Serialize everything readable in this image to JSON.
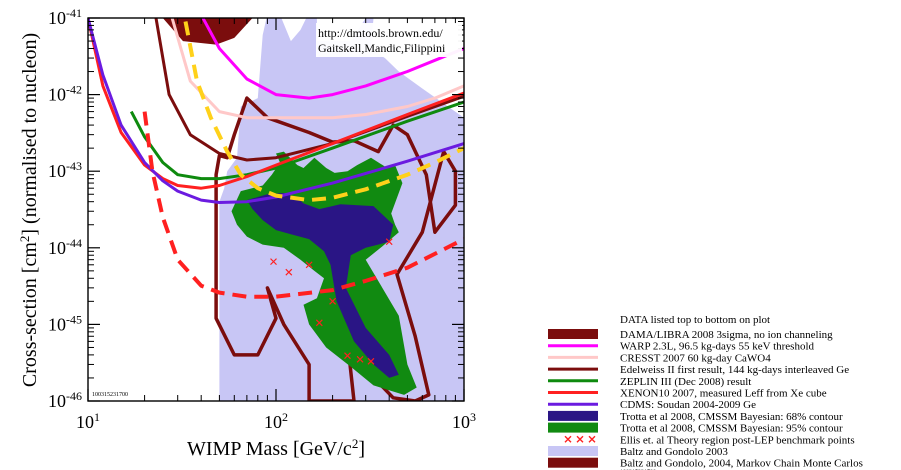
{
  "chart_data": {
    "type": "line",
    "xlabel_parts": [
      "WIMP Mass [GeV/c",
      "2",
      "]"
    ],
    "ylabel_parts": [
      "Cross-section [cm",
      "2",
      "] (normalised to nucleon)"
    ],
    "x_scale": "log",
    "y_scale": "log",
    "xlim": [
      10,
      1000
    ],
    "ylim": [
      1e-46,
      1e-41
    ],
    "x_ticks": [
      {
        "value": 10,
        "mantissa": "10",
        "exp": "1"
      },
      {
        "value": 100,
        "mantissa": "10",
        "exp": "2"
      },
      {
        "value": 1000,
        "mantissa": "10",
        "exp": "3"
      }
    ],
    "y_ticks": [
      {
        "value": 1e-46,
        "mantissa": "10",
        "exp": "-46"
      },
      {
        "value": 1e-45,
        "mantissa": "10",
        "exp": "-45"
      },
      {
        "value": 1e-44,
        "mantissa": "10",
        "exp": "-44"
      },
      {
        "value": 1e-43,
        "mantissa": "10",
        "exp": "-43"
      },
      {
        "value": 1e-42,
        "mantissa": "10",
        "exp": "-42"
      },
      {
        "value": 1e-41,
        "mantissa": "10",
        "exp": "-41"
      }
    ],
    "grid": false,
    "annotations": [
      "http://dmtools.brown.edu/",
      "Gaitskell,Mandic,Filippini"
    ],
    "plot_id": "100315231700",
    "legend_header": "DATA listed top to bottom on plot",
    "legend_footer": "100315231700",
    "legend_placement": "right-bottom",
    "series": [
      {
        "name": "DAMA/LIBRA 2008 3sigma, no ion channeling",
        "kind": "region",
        "color": "#7b0d0d",
        "polygon": [
          [
            25,
            1e-41
          ],
          [
            32,
            5e-42
          ],
          [
            48,
            4.5e-42
          ],
          [
            60,
            5.5e-42
          ],
          [
            75,
            1e-41
          ]
        ]
      },
      {
        "name": "WARP 2.3L, 96.5 kg-days 55 keV threshold",
        "kind": "line",
        "color": "#ff00ff",
        "dash": "solid",
        "x": [
          40,
          50,
          70,
          100,
          150,
          200,
          300,
          500,
          700,
          1000
        ],
        "y": [
          1.1e-41,
          4e-42,
          1.6e-42,
          1e-42,
          9e-43,
          1e-42,
          1.3e-42,
          2e-42,
          2.8e-42,
          4e-42
        ]
      },
      {
        "name": "CRESST 2007 60 kg-day CaWO4",
        "kind": "line",
        "color": "#ffc8c8",
        "dash": "solid",
        "x": [
          28,
          35,
          50,
          70,
          100,
          200,
          300,
          500,
          700,
          1000
        ],
        "y": [
          1e-41,
          1.5e-42,
          6e-43,
          5e-43,
          5e-43,
          5e-43,
          5.5e-43,
          7e-43,
          9e-43,
          1.3e-42
        ]
      },
      {
        "name": "Edelweiss II first result, 144 kg-days interleaved Ge",
        "kind": "line",
        "color": "#7b0d0d",
        "dash": "solid",
        "x": [
          23,
          27,
          35,
          50,
          70,
          100,
          200,
          500,
          1000
        ],
        "y": [
          1e-41,
          1e-42,
          3e-43,
          1.7e-43,
          1.4e-43,
          1.5e-43,
          2.3e-43,
          5.2e-43,
          9.5e-43
        ]
      },
      {
        "name": "ZEPLIN III (Dec 2008) result",
        "kind": "line",
        "color": "#0e8a0e",
        "dash": "solid",
        "x": [
          17,
          20,
          25,
          30,
          40,
          50,
          70,
          100,
          200,
          500,
          1000
        ],
        "y": [
          6e-43,
          2.8e-43,
          1.3e-43,
          9e-44,
          8e-44,
          8e-44,
          9e-44,
          1.1e-43,
          2e-43,
          4.5e-43,
          8e-43
        ]
      },
      {
        "name": "XENON10 2007, measured Leff from Xe cube",
        "kind": "line",
        "color": "#ff2020",
        "dash": "solid",
        "x": [
          10,
          12,
          15,
          20,
          25,
          30,
          40,
          50,
          70,
          100,
          200,
          500,
          1000
        ],
        "y": [
          1e-41,
          1.3e-42,
          3.2e-43,
          1.2e-43,
          8e-44,
          6.5e-44,
          6e-44,
          6.5e-44,
          8.5e-44,
          1.2e-43,
          2.3e-43,
          5.5e-43,
          1.05e-42
        ]
      },
      {
        "name": "CDMS: Soudan 2004-2009 Ge",
        "kind": "line",
        "color": "#6b1be0",
        "dash": "solid",
        "x": [
          10,
          12,
          15,
          20,
          25,
          30,
          40,
          50,
          70,
          100,
          200,
          500,
          1000
        ],
        "y": [
          1e-41,
          1.8e-42,
          4e-43,
          1.3e-43,
          7.5e-44,
          5.5e-44,
          4.2e-44,
          3.9e-44,
          4e-44,
          4.6e-44,
          7e-44,
          1.35e-43,
          2.3e-43
        ]
      },
      {
        "name": "Trotta et al 2008, CMSSM Bayesian: 68% contour",
        "kind": "region",
        "color": "#2a1585",
        "polygon": [
          [
            70,
            4.2e-44
          ],
          [
            90,
            5e-44
          ],
          [
            110,
            5.2e-44
          ],
          [
            130,
            4.5e-44
          ],
          [
            140,
            3.8e-44
          ],
          [
            170,
            3.2e-44
          ],
          [
            220,
            3.7e-44
          ],
          [
            330,
            3.5e-44
          ],
          [
            420,
            2e-44
          ],
          [
            400,
            1.2e-44
          ],
          [
            300,
            1e-44
          ],
          [
            250,
            8e-45
          ],
          [
            235,
            3e-45
          ],
          [
            300,
            9e-46
          ],
          [
            400,
            4e-46
          ],
          [
            450,
            2.2e-46
          ],
          [
            400,
            2e-46
          ],
          [
            330,
            3e-46
          ],
          [
            260,
            6e-46
          ],
          [
            210,
            2e-45
          ],
          [
            195,
            6e-45
          ],
          [
            180,
            9e-45
          ],
          [
            150,
            1.3e-44
          ],
          [
            120,
            1.5e-44
          ],
          [
            100,
            1.7e-44
          ],
          [
            85,
            2.3e-44
          ],
          [
            75,
            3.2e-44
          ]
        ]
      },
      {
        "name": "Trotta et al 2008, CMSSM Bayesian: 95% contour",
        "kind": "region",
        "color": "#118a11",
        "polygon": [
          [
            65,
            5.5e-44
          ],
          [
            85,
            6.5e-44
          ],
          [
            95,
            9e-44
          ],
          [
            105,
            1.3e-43
          ],
          [
            100,
            1.7e-43
          ],
          [
            110,
            1.8e-43
          ],
          [
            130,
            1.2e-43
          ],
          [
            140,
            1.1e-43
          ],
          [
            160,
            1.5e-43
          ],
          [
            185,
            1.1e-43
          ],
          [
            205,
            9.5e-44
          ],
          [
            240,
            1e-43
          ],
          [
            270,
            1.2e-43
          ],
          [
            320,
            1.5e-43
          ],
          [
            380,
            1.15e-43
          ],
          [
            430,
            1.2e-43
          ],
          [
            470,
            7e-44
          ],
          [
            410,
            2.8e-44
          ],
          [
            430,
            2e-44
          ],
          [
            450,
            1.6e-44
          ],
          [
            360,
            1e-44
          ],
          [
            300,
            7e-45
          ],
          [
            450,
            1.3e-45
          ],
          [
            500,
            3e-46
          ],
          [
            560,
            1.5e-46
          ],
          [
            480,
            1.2e-46
          ],
          [
            330,
            1.6e-46
          ],
          [
            250,
            2.8e-46
          ],
          [
            185,
            5e-46
          ],
          [
            150,
            1e-45
          ],
          [
            140,
            1.8e-45
          ],
          [
            165,
            2.2e-45
          ],
          [
            180,
            4e-45
          ],
          [
            160,
            5e-45
          ],
          [
            135,
            7e-45
          ],
          [
            110,
            1e-44
          ],
          [
            85,
            1.1e-44
          ],
          [
            70,
            1.4e-44
          ],
          [
            62,
            2e-44
          ],
          [
            58,
            3e-44
          ]
        ]
      },
      {
        "name": "Ellis et. al Theory region post-LEP benchmark points",
        "kind": "points",
        "color": "#ff2020",
        "x": [
          97,
          117,
          150,
          170,
          200,
          240,
          280,
          320,
          400
        ],
        "y": [
          6.6e-45,
          4.8e-45,
          6e-45,
          1.05e-45,
          2e-45,
          3.9e-46,
          3.5e-46,
          3.3e-46,
          1.2e-44
        ]
      },
      {
        "name": "Baltz and Gondolo 2003",
        "kind": "region",
        "color": "#c8c6f5",
        "polygon": [
          [
            50,
            1e-46
          ],
          [
            50,
            4e-44
          ],
          [
            53,
            6e-44
          ],
          [
            55,
            1e-43
          ],
          [
            62,
            1.5e-43
          ],
          [
            65,
            7e-43
          ],
          [
            80,
            9e-43
          ],
          [
            85,
            6e-42
          ],
          [
            95,
            2e-41
          ],
          [
            120,
            5e-42
          ],
          [
            135,
            7e-42
          ],
          [
            145,
            1e-41
          ],
          [
            165,
            1e-41
          ],
          [
            165,
            5e-42
          ],
          [
            250,
            5e-42
          ],
          [
            300,
            1e-41
          ],
          [
            330,
            1e-41
          ],
          [
            320,
            4e-42
          ],
          [
            380,
            3e-42
          ],
          [
            450,
            2e-42
          ],
          [
            600,
            1.2e-42
          ],
          [
            1000,
            5e-43
          ],
          [
            1000,
            1e-46
          ]
        ]
      },
      {
        "name": "Baltz and Gondolo, 2004, Markov Chain Monte Carlos",
        "kind": "region_outline",
        "color": "#7b0d0d",
        "polygon": [
          [
            48,
            9e-44
          ],
          [
            48,
            1.2e-45
          ],
          [
            60,
            4e-46
          ],
          [
            80,
            4e-46
          ],
          [
            100,
            1.2e-45
          ],
          [
            90,
            3e-45
          ],
          [
            110,
            1e-45
          ],
          [
            150,
            3e-46
          ],
          [
            150,
            1e-46
          ],
          [
            260,
            1e-46
          ],
          [
            240,
            6e-46
          ],
          [
            320,
            2.2e-46
          ],
          [
            420,
            1.1e-46
          ],
          [
            550,
            1e-46
          ],
          [
            650,
            1.2e-46
          ],
          [
            550,
            7e-46
          ],
          [
            440,
            4.5e-45
          ],
          [
            600,
            1.6e-44
          ],
          [
            780,
            1.8e-43
          ],
          [
            900,
            1e-43
          ],
          [
            900,
            3.6e-44
          ],
          [
            700,
            1.6e-44
          ],
          [
            630,
            9e-44
          ],
          [
            500,
            3e-43
          ],
          [
            420,
            4e-43
          ],
          [
            350,
            1.8e-43
          ],
          [
            260,
            2.5e-43
          ],
          [
            200,
            2.4e-43
          ],
          [
            150,
            3.2e-43
          ],
          [
            90,
            5e-43
          ],
          [
            70,
            9e-43
          ],
          [
            60,
            3e-43
          ],
          [
            55,
            1.5e-43
          ],
          [
            50,
            1.6e-43
          ]
        ]
      },
      {
        "name": "",
        "kind": "line",
        "color": "#ff2020",
        "dash": "long-dash",
        "x": [
          20,
          22,
          25,
          30,
          40,
          50,
          70,
          100,
          200,
          300,
          500,
          1000
        ],
        "y": [
          6e-43,
          1e-43,
          2.5e-44,
          7e-45,
          3.2e-45,
          2.6e-45,
          2.3e-45,
          2.3e-45,
          2.8e-45,
          3.7e-45,
          5.5e-45,
          1.3e-44
        ]
      },
      {
        "name": "",
        "kind": "line",
        "color": "#ffd11a",
        "dash": "long-dash",
        "x": [
          33,
          38,
          45,
          55,
          65,
          80,
          100,
          150,
          200,
          300,
          500,
          700,
          1000
        ],
        "y": [
          9e-42,
          1.5e-42,
          5e-43,
          1.8e-43,
          9e-44,
          6e-44,
          4.8e-44,
          4.2e-44,
          4.5e-44,
          5.8e-44,
          9e-44,
          1.3e-43,
          2e-43
        ]
      }
    ]
  }
}
